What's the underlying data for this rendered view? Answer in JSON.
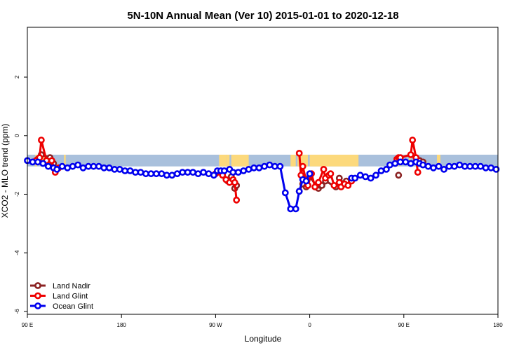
{
  "chart_data": {
    "type": "line",
    "title": "5N-10N Annual Mean (Ver 10)   2015-01-01 to 2020-12-18",
    "xlabel": "Longitude",
    "ylabel": "XCO2 - MLO trend (ppm)",
    "xlim": [
      -90,
      180
    ],
    "ylim": [
      -6.1,
      3.7
    ],
    "x_ticks": [
      {
        "value": -90,
        "label": "90 E"
      },
      {
        "value": -36,
        "label": "180"
      },
      {
        "value": 18,
        "label": "90 W"
      },
      {
        "value": 72,
        "label": "0"
      },
      {
        "value": 126,
        "label": "90 E"
      },
      {
        "value": 180,
        "label": "180"
      }
    ],
    "y_ticks": [
      {
        "value": -6,
        "label": "-6"
      },
      {
        "value": -4,
        "label": "-4"
      },
      {
        "value": -2,
        "label": "-2"
      },
      {
        "value": 0,
        "label": "0"
      },
      {
        "value": 2,
        "label": "2"
      }
    ],
    "background_band": {
      "y_range": [
        -1.05,
        -0.65
      ],
      "ocean_color": "#a9c0dc",
      "land_color": "#fcd97c",
      "land_segments": [
        [
          -85.5,
          -84.5
        ],
        [
          -82,
          -79
        ],
        [
          -69,
          -68
        ],
        [
          20,
          24
        ],
        [
          24,
          26
        ],
        [
          27,
          37
        ],
        [
          61,
          64
        ],
        [
          65,
          71
        ],
        [
          72,
          100
        ],
        [
          122,
          123
        ],
        [
          124,
          124.5
        ],
        [
          129,
          130
        ],
        [
          145,
          147
        ]
      ]
    },
    "series": [
      {
        "name": "Land Nadir",
        "color": "#8b2323",
        "x": [
          -84,
          -82,
          -77,
          -75,
          25,
          26,
          27,
          29,
          30,
          66,
          68,
          70,
          72,
          77,
          78,
          79,
          81,
          87,
          89,
          92,
          93,
          123,
          135,
          137
        ],
        "y": [
          -0.8,
          -0.65,
          -0.75,
          -0.95,
          -1.55,
          -1.5,
          -1.4,
          -1.8,
          -1.7,
          -1.9,
          -1.65,
          -1.75,
          -1.4,
          -1.8,
          -1.7,
          -1.7,
          -1.55,
          -1.75,
          -1.45,
          -1.65,
          -1.55,
          -1.35,
          -0.85,
          -0.9
        ]
      },
      {
        "name": "Land Glint",
        "color": "#ee0000",
        "x": [
          -85,
          -83,
          -82,
          -79,
          -76,
          -74,
          -72,
          18,
          22,
          24,
          26,
          28,
          29,
          30,
          66,
          67,
          68,
          70,
          71,
          73,
          75,
          77,
          80,
          81,
          83,
          84,
          86,
          89,
          90,
          92,
          94,
          96,
          122,
          123,
          124,
          130,
          131,
          133,
          134
        ],
        "y": [
          -0.85,
          -0.75,
          -0.15,
          -0.85,
          -0.85,
          -1.25,
          -1.1,
          -1.3,
          -1.35,
          -1.5,
          -1.6,
          -1.5,
          -1.6,
          -2.2,
          -0.6,
          -1.35,
          -1.05,
          -1.55,
          -1.7,
          -1.3,
          -1.75,
          -1.6,
          -1.15,
          -1.45,
          -1.35,
          -1.3,
          -1.7,
          -1.6,
          -1.75,
          -1.65,
          -1.7,
          -1.55,
          -0.8,
          -0.75,
          -0.75,
          -0.65,
          -0.15,
          -0.75,
          -1.25
        ]
      },
      {
        "name": "Ocean Glint",
        "color": "#0000ee",
        "x": [
          -90,
          -87,
          -84,
          -81,
          -78,
          -75,
          -73,
          -70,
          -67,
          -64,
          -61,
          -58,
          -55,
          -52,
          -49,
          -46,
          -43,
          -40,
          -37,
          -34,
          -31,
          -28,
          -25,
          -22,
          -19,
          -16,
          -13,
          -10,
          -7,
          -4,
          -1,
          2,
          5,
          8,
          11,
          14,
          17,
          19,
          21,
          23,
          26,
          28,
          31,
          34,
          37,
          40,
          43,
          46,
          49,
          52,
          55,
          58,
          61,
          64,
          66,
          68,
          70,
          72,
          96,
          98,
          101,
          104,
          107,
          110,
          113,
          116,
          118,
          121,
          124,
          127,
          130,
          133,
          135,
          137,
          140,
          143,
          146,
          149,
          152,
          155,
          158,
          161,
          164,
          167,
          170,
          173,
          176,
          179
        ],
        "y": [
          -0.85,
          -0.9,
          -0.9,
          -0.95,
          -1.05,
          -1.1,
          -1.15,
          -1.05,
          -1.1,
          -1.05,
          -1.0,
          -1.1,
          -1.05,
          -1.05,
          -1.05,
          -1.1,
          -1.1,
          -1.15,
          -1.15,
          -1.2,
          -1.2,
          -1.25,
          -1.25,
          -1.3,
          -1.3,
          -1.3,
          -1.3,
          -1.35,
          -1.35,
          -1.3,
          -1.25,
          -1.25,
          -1.25,
          -1.3,
          -1.25,
          -1.3,
          -1.35,
          -1.2,
          -1.2,
          -1.2,
          -1.15,
          -1.25,
          -1.25,
          -1.2,
          -1.15,
          -1.1,
          -1.1,
          -1.05,
          -1.0,
          -1.05,
          -1.05,
          -1.95,
          -2.5,
          -2.5,
          -1.9,
          -1.5,
          -1.55,
          -1.3,
          -1.45,
          -1.45,
          -1.35,
          -1.4,
          -1.45,
          -1.35,
          -1.2,
          -1.15,
          -1.0,
          -0.95,
          -0.9,
          -0.9,
          -0.95,
          -0.9,
          -0.95,
          -1.0,
          -1.05,
          -1.1,
          -1.05,
          -1.15,
          -1.05,
          -1.05,
          -1.0,
          -1.05,
          -1.05,
          -1.05,
          -1.05,
          -1.1,
          -1.1,
          -1.15
        ]
      }
    ],
    "legend": {
      "position": "bottom-left"
    },
    "grid": false
  }
}
